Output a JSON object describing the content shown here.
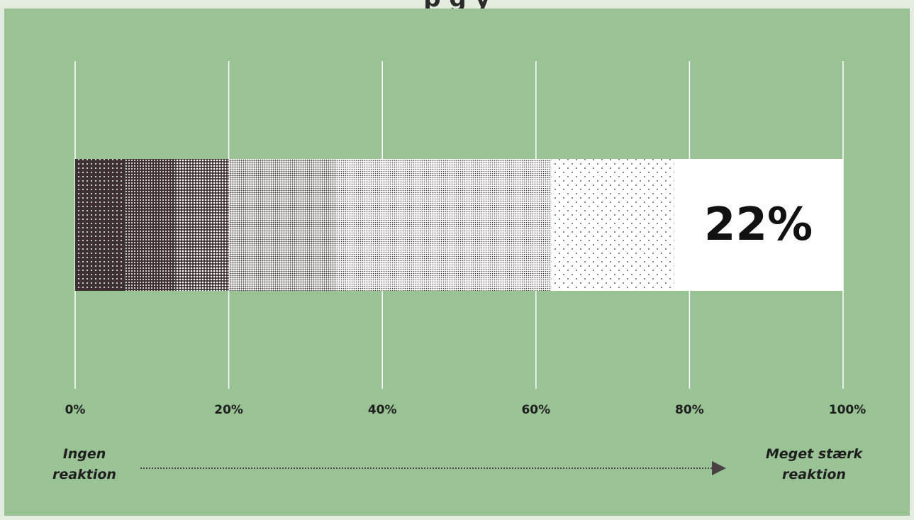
{
  "title_fragment": "p                                                  g  y",
  "chart_data": {
    "type": "bar",
    "orientation": "horizontal-stacked-gradient",
    "value": 22,
    "value_label": "22%",
    "xlim": [
      0,
      100
    ],
    "x_ticks": [
      "0%",
      "20%",
      "40%",
      "60%",
      "80%",
      "100%"
    ],
    "x_tick_values": [
      0,
      20,
      40,
      60,
      80,
      100
    ],
    "grid": true,
    "segments": [
      {
        "start": 0,
        "end": 6.5
      },
      {
        "start": 6.5,
        "end": 13
      },
      {
        "start": 13,
        "end": 20
      },
      {
        "start": 20,
        "end": 34
      },
      {
        "start": 34,
        "end": 62
      },
      {
        "start": 62,
        "end": 78
      },
      {
        "start": 78,
        "end": 100
      }
    ],
    "scale_start_label": [
      "Ingen",
      "reaktion"
    ],
    "scale_end_label": [
      "Meget stærk",
      "reaktion"
    ]
  },
  "colors": {
    "background": "#99c394",
    "dark": "#3d3033",
    "light": "#ffffff",
    "arrow": "#4a4145"
  }
}
